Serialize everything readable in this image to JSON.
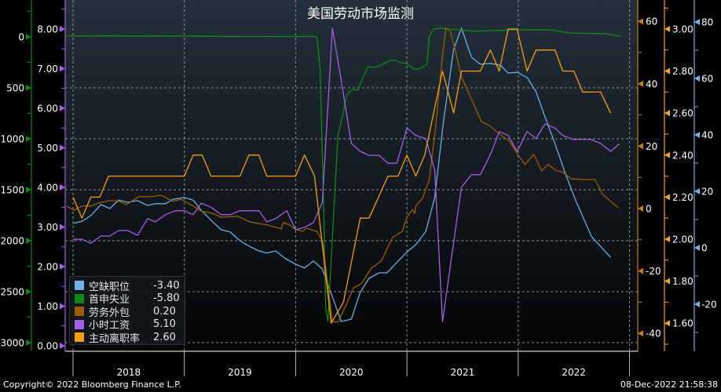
{
  "title": "美国劳动市场监测",
  "footer": {
    "copyright": "Copyright© 2022 Bloomberg Finance L.P.",
    "timestamp": "08-Dec-2022 21:58:38"
  },
  "chart_data": {
    "type": "line",
    "title": "美国劳动市场监测",
    "x_range": [
      2017.93,
      2023.08
    ],
    "x_ticks": [
      {
        "label": "2018",
        "year": 2018
      },
      {
        "label": "2019",
        "year": 2019
      },
      {
        "label": "2020",
        "year": 2020
      },
      {
        "label": "2021",
        "year": 2021
      },
      {
        "label": "2022",
        "year": 2022
      }
    ],
    "grid": true,
    "legend_position": "bottom-left",
    "axes": {
      "green": {
        "side": "left",
        "inverted": true,
        "color": "#0f8a14",
        "ticks": [
          "0",
          "500",
          "1000",
          "1500",
          "2000",
          "2500",
          "3000"
        ],
        "values": [
          0,
          500,
          1000,
          1500,
          2000,
          2500,
          3000
        ]
      },
      "purple": {
        "side": "left",
        "color": "#a55ee6",
        "ticks": [
          "8.00",
          "7.00",
          "6.00",
          "5.00",
          "4.00",
          "3.00",
          "2.00",
          "1.00",
          "0.00"
        ],
        "values": [
          8,
          7,
          6,
          5,
          4,
          3,
          2,
          1,
          0
        ]
      },
      "brown": {
        "side": "right",
        "color": "#c8800a",
        "ticks": [
          "60",
          "40",
          "20",
          "0",
          "-20",
          "-40"
        ],
        "values": [
          60,
          40,
          20,
          0,
          -20,
          -40
        ]
      },
      "orange": {
        "side": "right",
        "color": "#f5a623",
        "ticks": [
          "3.00",
          "2.80",
          "2.60",
          "2.40",
          "2.20",
          "2.00",
          "1.80",
          "1.60"
        ],
        "values": [
          3,
          2.8,
          2.6,
          2.4,
          2.2,
          2.0,
          1.8,
          1.6
        ]
      },
      "blue": {
        "side": "right",
        "color": "#6fb1e8",
        "ticks": [
          "80",
          "60",
          "40",
          "20",
          "0",
          "-20"
        ],
        "values": [
          80,
          60,
          40,
          20,
          0,
          -20
        ]
      }
    },
    "series": [
      {
        "name": "空缺职位",
        "value": "-3.40",
        "axis": "blue",
        "color": "#6aaee6",
        "points": [
          [
            2018,
            8.6
          ],
          [
            2018.08,
            9.4
          ],
          [
            2018.16,
            11.4
          ],
          [
            2018.25,
            15.3
          ],
          [
            2018.33,
            13.9
          ],
          [
            2018.41,
            16.9
          ],
          [
            2018.49,
            16.1
          ],
          [
            2018.58,
            16.7
          ],
          [
            2018.67,
            15.0
          ],
          [
            2018.74,
            15.6
          ],
          [
            2018.83,
            15.6
          ],
          [
            2018.9,
            17.2
          ],
          [
            2019,
            17.8
          ],
          [
            2019.08,
            16.9
          ],
          [
            2019.15,
            13.3
          ],
          [
            2019.25,
            9.4
          ],
          [
            2019.33,
            6.4
          ],
          [
            2019.41,
            5.6
          ],
          [
            2019.5,
            2.5
          ],
          [
            2019.57,
            0.8
          ],
          [
            2019.67,
            -1.1
          ],
          [
            2019.74,
            -1.9
          ],
          [
            2019.82,
            -1.1
          ],
          [
            2019.91,
            -3.9
          ],
          [
            2020,
            -5.8
          ],
          [
            2020.08,
            -7.2
          ],
          [
            2020.16,
            -4.7
          ],
          [
            2020.24,
            -7.5
          ],
          [
            2020.41,
            -26.1
          ],
          [
            2020.5,
            -25.3
          ],
          [
            2020.58,
            -15.8
          ],
          [
            2020.66,
            -10.8
          ],
          [
            2020.75,
            -8.9
          ],
          [
            2020.82,
            -8.9
          ],
          [
            2020.99,
            -1.9
          ],
          [
            2021.08,
            1.1
          ],
          [
            2021.17,
            5.8
          ],
          [
            2021.25,
            17.8
          ],
          [
            2021.33,
            45.3
          ],
          [
            2021.42,
            70.3
          ],
          [
            2021.49,
            77.8
          ],
          [
            2021.58,
            67.5
          ],
          [
            2021.66,
            65.0
          ],
          [
            2021.75,
            65.3
          ],
          [
            2021.84,
            64.7
          ],
          [
            2021.91,
            61.9
          ],
          [
            2021.99,
            62.2
          ],
          [
            2022.08,
            60.3
          ],
          [
            2022.16,
            55.3
          ],
          [
            2022.23,
            47.5
          ],
          [
            2022.33,
            36.9
          ],
          [
            2022.42,
            26.7
          ],
          [
            2022.52,
            16.4
          ],
          [
            2022.66,
            3.9
          ],
          [
            2022.83,
            -3.4
          ]
        ]
      },
      {
        "name": "首申失业",
        "value": "-5.80",
        "axis": "green",
        "color": "#0f8a14",
        "points": [
          [
            2017.93,
            -8
          ],
          [
            2018.3,
            -10
          ],
          [
            2018.7,
            -6
          ],
          [
            2019.0,
            -8
          ],
          [
            2019.4,
            -4
          ],
          [
            2019.8,
            -3
          ],
          [
            2020.1,
            -5
          ],
          [
            2020.19,
            0
          ],
          [
            2020.22,
            308
          ],
          [
            2020.25,
            1585
          ],
          [
            2020.27,
            2662
          ],
          [
            2020.29,
            2792
          ],
          [
            2020.33,
            1969
          ],
          [
            2020.38,
            969
          ],
          [
            2020.43,
            738
          ],
          [
            2020.46,
            562
          ],
          [
            2020.51,
            515
          ],
          [
            2020.56,
            523
          ],
          [
            2020.6,
            408
          ],
          [
            2020.65,
            292
          ],
          [
            2020.71,
            300
          ],
          [
            2020.78,
            269
          ],
          [
            2020.85,
            231
          ],
          [
            2020.91,
            231
          ],
          [
            2020.94,
            254
          ],
          [
            2021.0,
            262
          ],
          [
            2021.06,
            315
          ],
          [
            2021.11,
            315
          ],
          [
            2021.18,
            269
          ],
          [
            2021.2,
            0
          ],
          [
            2021.24,
            -77
          ],
          [
            2021.32,
            -85
          ],
          [
            2021.6,
            -54
          ],
          [
            2021.81,
            -62
          ],
          [
            2021.98,
            -69
          ],
          [
            2022.28,
            -69
          ],
          [
            2022.47,
            -38
          ],
          [
            2022.78,
            -31
          ],
          [
            2022.92,
            -5.8
          ]
        ]
      },
      {
        "name": "劳务外包",
        "value": "0.20",
        "axis": "brown",
        "color": "#9c5d00",
        "points": [
          [
            2017.94,
            0.8
          ],
          [
            2018.01,
            -0.5
          ],
          [
            2018.08,
            0.8
          ],
          [
            2018.16,
            0.8
          ],
          [
            2018.23,
            1.8
          ],
          [
            2018.32,
            2.5
          ],
          [
            2018.4,
            2.5
          ],
          [
            2018.48,
            1.3
          ],
          [
            2018.59,
            3.8
          ],
          [
            2018.71,
            3.8
          ],
          [
            2018.79,
            4.3
          ],
          [
            2018.9,
            2.3
          ],
          [
            2018.97,
            3.0
          ],
          [
            2019.08,
            0.8
          ],
          [
            2019.15,
            -0.8
          ],
          [
            2019.25,
            -1.5
          ],
          [
            2019.33,
            -2.8
          ],
          [
            2019.48,
            -2.5
          ],
          [
            2019.59,
            -4.3
          ],
          [
            2019.75,
            -5.3
          ],
          [
            2019.87,
            -6.5
          ],
          [
            2019.89,
            -4.5
          ],
          [
            2019.95,
            -5.3
          ],
          [
            2019.99,
            -6.5
          ],
          [
            2020.06,
            -7.3
          ],
          [
            2020.1,
            -6.3
          ],
          [
            2020.19,
            -7.3
          ],
          [
            2020.24,
            -10.3
          ],
          [
            2020.33,
            -36.2
          ],
          [
            2020.38,
            -36.4
          ],
          [
            2020.45,
            -31.2
          ],
          [
            2020.52,
            -25.4
          ],
          [
            2020.59,
            -24.1
          ],
          [
            2020.68,
            -19.1
          ],
          [
            2020.77,
            -16.8
          ],
          [
            2020.87,
            -9.3
          ],
          [
            2020.96,
            -7.3
          ],
          [
            2021.0,
            -2.8
          ],
          [
            2021.05,
            -0.3
          ],
          [
            2021.07,
            -1.5
          ],
          [
            2021.08,
            0.8
          ],
          [
            2021.14,
            3.3
          ],
          [
            2021.2,
            9.0
          ],
          [
            2021.26,
            26.6
          ],
          [
            2021.32,
            49.2
          ],
          [
            2021.35,
            57.8
          ],
          [
            2021.39,
            56.8
          ],
          [
            2021.44,
            50.0
          ],
          [
            2021.49,
            42.2
          ],
          [
            2021.59,
            34.2
          ],
          [
            2021.67,
            27.9
          ],
          [
            2021.74,
            26.6
          ],
          [
            2021.85,
            23.4
          ],
          [
            2021.92,
            21.6
          ],
          [
            2022.0,
            17.1
          ],
          [
            2022.06,
            14.1
          ],
          [
            2022.14,
            17.3
          ],
          [
            2022.21,
            12.1
          ],
          [
            2022.27,
            14.1
          ],
          [
            2022.34,
            12.1
          ],
          [
            2022.4,
            11.6
          ],
          [
            2022.48,
            9.5
          ],
          [
            2022.62,
            9.3
          ],
          [
            2022.69,
            9.3
          ],
          [
            2022.76,
            4.5
          ],
          [
            2022.9,
            0.2
          ]
        ]
      },
      {
        "name": "小时工资",
        "value": "5.10",
        "axis": "purple",
        "color": "#a55ee6",
        "points": [
          [
            2018,
            2.69
          ],
          [
            2018.08,
            2.69
          ],
          [
            2018.16,
            2.59
          ],
          [
            2018.25,
            2.77
          ],
          [
            2018.33,
            2.77
          ],
          [
            2018.41,
            2.91
          ],
          [
            2018.49,
            2.91
          ],
          [
            2018.58,
            2.79
          ],
          [
            2018.67,
            3.21
          ],
          [
            2018.74,
            3.13
          ],
          [
            2018.83,
            3.31
          ],
          [
            2018.92,
            3.41
          ],
          [
            2019,
            3.41
          ],
          [
            2019.08,
            3.31
          ],
          [
            2019.15,
            3.6
          ],
          [
            2019.24,
            3.5
          ],
          [
            2019.33,
            3.31
          ],
          [
            2019.41,
            3.31
          ],
          [
            2019.5,
            3.41
          ],
          [
            2019.67,
            3.41
          ],
          [
            2019.74,
            3.13
          ],
          [
            2019.82,
            3.21
          ],
          [
            2019.92,
            3.41
          ],
          [
            2020,
            2.93
          ],
          [
            2020.08,
            2.99
          ],
          [
            2020.16,
            3.11
          ],
          [
            2020.24,
            3.62
          ],
          [
            2020.33,
            8.02
          ],
          [
            2020.41,
            6.69
          ],
          [
            2020.5,
            5.11
          ],
          [
            2020.58,
            4.91
          ],
          [
            2020.66,
            4.81
          ],
          [
            2020.75,
            4.81
          ],
          [
            2020.83,
            4.61
          ],
          [
            2020.91,
            4.61
          ],
          [
            2021,
            5.5
          ],
          [
            2021.08,
            5.31
          ],
          [
            2021.17,
            5.23
          ],
          [
            2021.25,
            4.44
          ],
          [
            2021.32,
            0.61
          ],
          [
            2021.49,
            4.0
          ],
          [
            2021.58,
            4.32
          ],
          [
            2021.66,
            4.32
          ],
          [
            2021.75,
            4.83
          ],
          [
            2021.83,
            5.41
          ],
          [
            2021.91,
            5.31
          ],
          [
            2021.99,
            4.91
          ],
          [
            2022.08,
            5.41
          ],
          [
            2022.16,
            5.23
          ],
          [
            2022.24,
            5.6
          ],
          [
            2022.33,
            5.5
          ],
          [
            2022.4,
            5.31
          ],
          [
            2022.5,
            5.21
          ],
          [
            2022.65,
            5.21
          ],
          [
            2022.74,
            5.11
          ],
          [
            2022.83,
            4.91
          ],
          [
            2022.91,
            5.1
          ]
        ]
      },
      {
        "name": "主动离职率",
        "value": "2.60",
        "axis": "orange",
        "color": "#f59e12",
        "points": [
          [
            2018,
            2.2
          ],
          [
            2018.08,
            2.1
          ],
          [
            2018.16,
            2.2
          ],
          [
            2018.24,
            2.2
          ],
          [
            2018.32,
            2.3
          ],
          [
            2019,
            2.3
          ],
          [
            2019.08,
            2.4
          ],
          [
            2019.16,
            2.4
          ],
          [
            2019.24,
            2.3
          ],
          [
            2019.5,
            2.3
          ],
          [
            2019.58,
            2.4
          ],
          [
            2019.67,
            2.4
          ],
          [
            2019.74,
            2.3
          ],
          [
            2020,
            2.3
          ],
          [
            2020.08,
            2.4
          ],
          [
            2020.17,
            2.3
          ],
          [
            2020.32,
            1.6
          ],
          [
            2020.43,
            1.7
          ],
          [
            2020.58,
            2.1
          ],
          [
            2020.66,
            2.1
          ],
          [
            2020.83,
            2.3
          ],
          [
            2020.92,
            2.3
          ],
          [
            2021,
            2.4
          ],
          [
            2021.08,
            2.3
          ],
          [
            2021.16,
            2.4
          ],
          [
            2021.32,
            2.8
          ],
          [
            2021.42,
            2.6
          ],
          [
            2021.49,
            2.8
          ],
          [
            2021.66,
            2.8
          ],
          [
            2021.75,
            2.9
          ],
          [
            2021.83,
            2.8
          ],
          [
            2021.91,
            3.0
          ],
          [
            2021.99,
            3.0
          ],
          [
            2022.08,
            2.8
          ],
          [
            2022.16,
            2.9
          ],
          [
            2022.33,
            2.9
          ],
          [
            2022.4,
            2.8
          ],
          [
            2022.5,
            2.8
          ],
          [
            2022.58,
            2.7
          ],
          [
            2022.74,
            2.7
          ],
          [
            2022.83,
            2.6
          ]
        ]
      }
    ]
  }
}
